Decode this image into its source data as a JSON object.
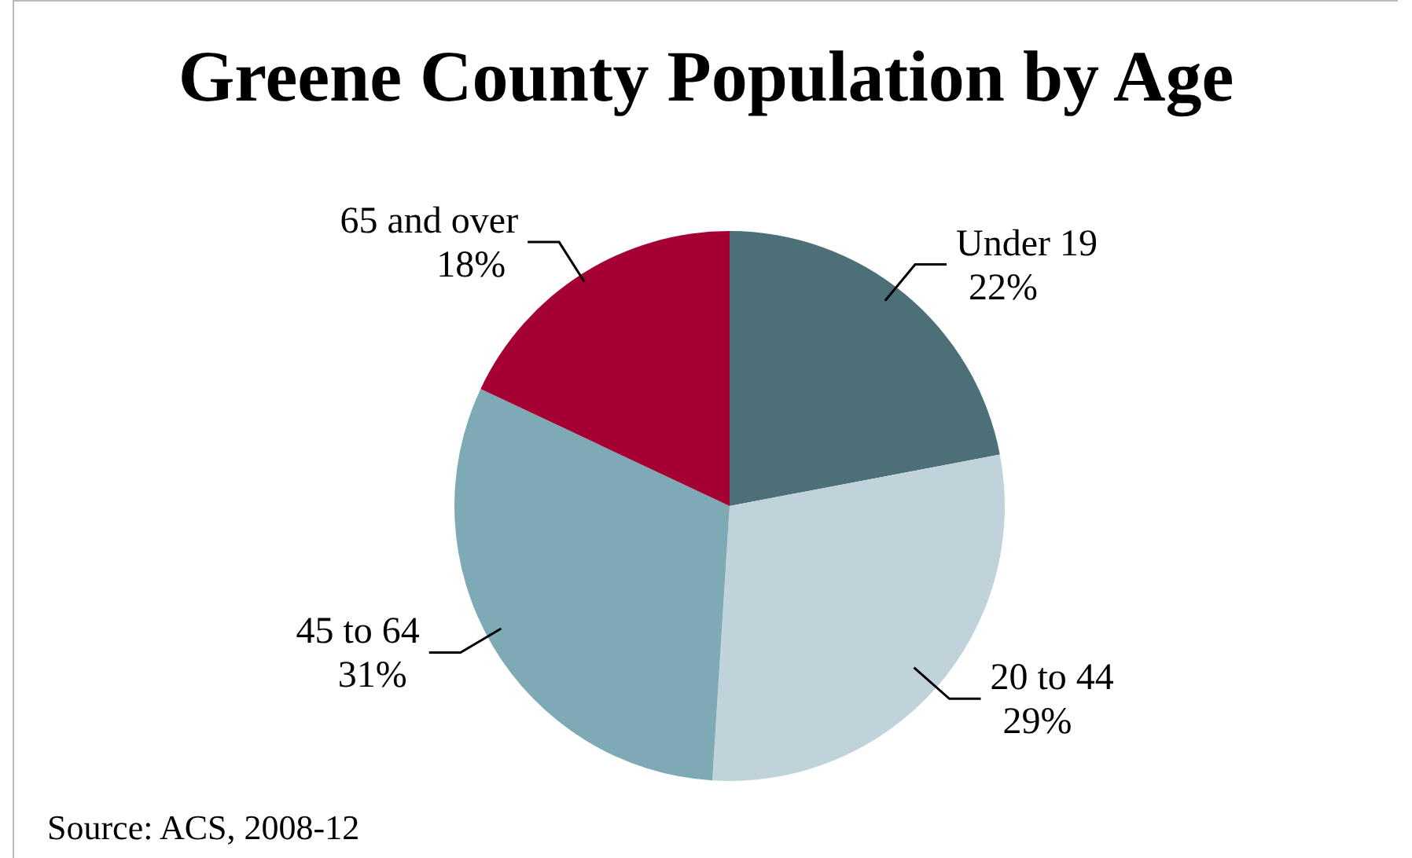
{
  "chart_data": {
    "type": "pie",
    "title": "Greene County Population by Age",
    "categories": [
      "Under 19",
      "20 to 44",
      "45 to 64",
      "65 and over"
    ],
    "values": [
      22,
      29,
      31,
      18
    ],
    "colors": [
      "#4d6f78",
      "#c0d3da",
      "#7eaab6",
      "#a50034"
    ],
    "value_labels": [
      "22%",
      "29%",
      "31%",
      "18%"
    ],
    "annotations": [
      "Source: ACS, 2008-12"
    ]
  }
}
